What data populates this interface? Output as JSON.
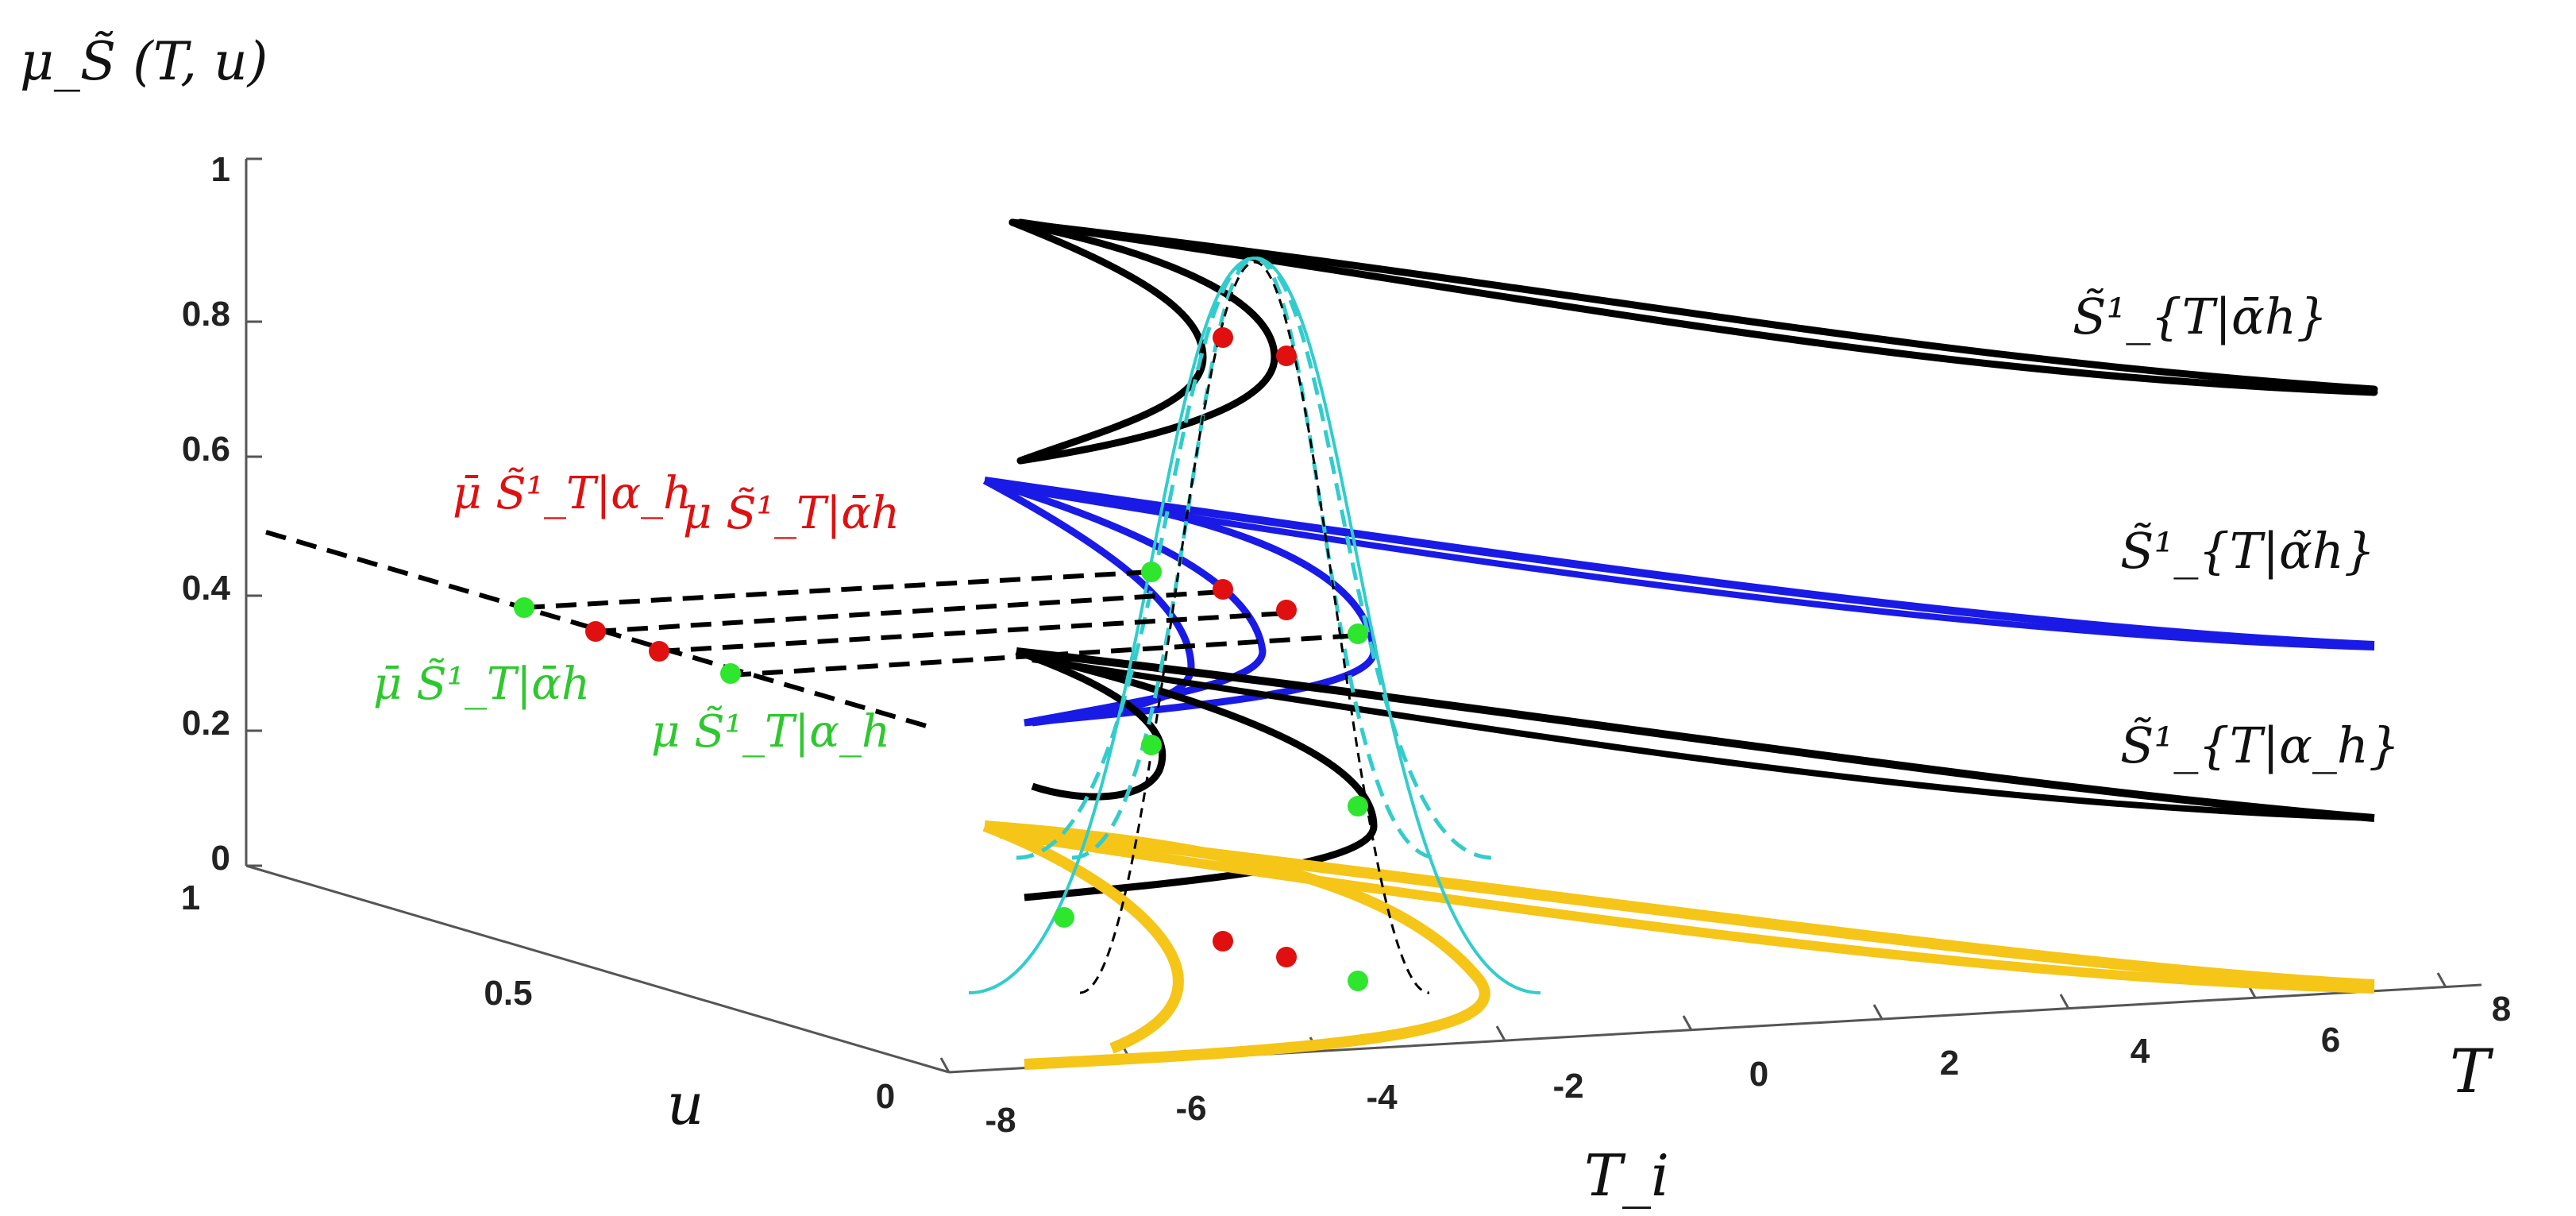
{
  "chart_data": {
    "type": "line3d",
    "title": "",
    "zlabel": "μ_S̃ (T, u)",
    "xlabel": "T_i",
    "ylabel": "u",
    "tlabel": "T",
    "z_ticks": [
      "0",
      "0.2",
      "0.4",
      "0.6",
      "0.8",
      "1"
    ],
    "u_ticks": [
      "0",
      "0.5",
      "1"
    ],
    "x_ticks": [
      "-8",
      "-6",
      "-4",
      "-2",
      "0",
      "2",
      "4",
      "6",
      "8"
    ],
    "grid": false,
    "series": [
      {
        "name": "S̃¹_{T|ᾱh}",
        "color": "#000000",
        "level": 0.75,
        "peak_z": 0.92
      },
      {
        "name": "S̃¹_{T|α̃h}",
        "color": "#1a1ae6",
        "level": 0.5,
        "peak_z": 0.55
      },
      {
        "name": "S̃¹_{T|α_h}",
        "color": "#000000",
        "level": 0.25,
        "peak_z": 0.33
      },
      {
        "name": "",
        "color": "#f5c518",
        "level": 0.0,
        "peak_z": 0.0
      }
    ],
    "points": {
      "red_upper": [
        {
          "T": -5.7,
          "z": 0.77
        },
        {
          "T": -4.9,
          "z": 0.77
        }
      ],
      "red_mid": [
        {
          "T": -5.7,
          "z": 0.4
        },
        {
          "T": -4.9,
          "z": 0.36
        }
      ],
      "green_mid": [
        {
          "T": -6.5,
          "z": 0.43
        },
        {
          "T": -4.2,
          "z": 0.33
        }
      ],
      "green_lower": [
        {
          "T": -6.5,
          "z": 0.17
        },
        {
          "T": -4.2,
          "z": 0.09
        }
      ]
    },
    "annotations": {
      "mu_upper_red_1": "μ̄ S̃¹_T|α_h",
      "mu_upper_red_2": "μ S̃¹_T|ᾱh",
      "mu_green_1": "μ̄ S̃¹_T|ᾱh",
      "mu_green_2": "μ S̃¹_T|α_h"
    },
    "colors": {
      "black": "#000000",
      "blue": "#1a1ae6",
      "yellow": "#f5c518",
      "cyan": "#33cccc",
      "red": "#e01010",
      "green": "#2ee62e"
    }
  }
}
